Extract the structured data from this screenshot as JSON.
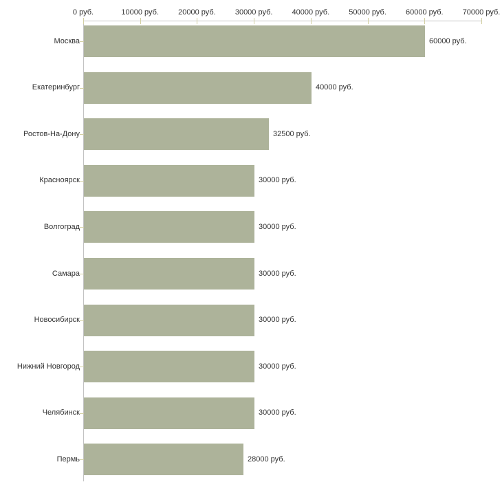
{
  "chart_data": {
    "type": "bar",
    "orientation": "horizontal",
    "categories": [
      "Москва",
      "Екатеринбург",
      "Ростов-На-Дону",
      "Красноярск",
      "Волгоград",
      "Самара",
      "Новосибирск",
      "Нижний Новгород",
      "Челябинск",
      "Пермь"
    ],
    "values": [
      60000,
      40000,
      32500,
      30000,
      30000,
      30000,
      30000,
      30000,
      30000,
      28000
    ],
    "value_labels": [
      "60000 руб.",
      "40000 руб.",
      "32500 руб.",
      "30000 руб.",
      "30000 руб.",
      "30000 руб.",
      "30000 руб.",
      "30000 руб.",
      "30000 руб.",
      "28000 руб."
    ],
    "x_axis": {
      "position": "top",
      "min": 0,
      "max": 70000,
      "ticks": [
        0,
        10000,
        20000,
        30000,
        40000,
        50000,
        60000,
        70000
      ],
      "tick_labels": [
        "0 руб.",
        "10000 руб.",
        "20000 руб.",
        "30000 руб.",
        "40000 руб.",
        "50000 руб.",
        "60000 руб.",
        "70000 руб."
      ]
    },
    "unit": "руб.",
    "grid": "off",
    "legend": "none",
    "colors": {
      "bar": "#adb39a",
      "axis_line": "#c2c2c2",
      "tick": "#d2cfa2",
      "text": "#333333",
      "background": "#ffffff"
    }
  }
}
